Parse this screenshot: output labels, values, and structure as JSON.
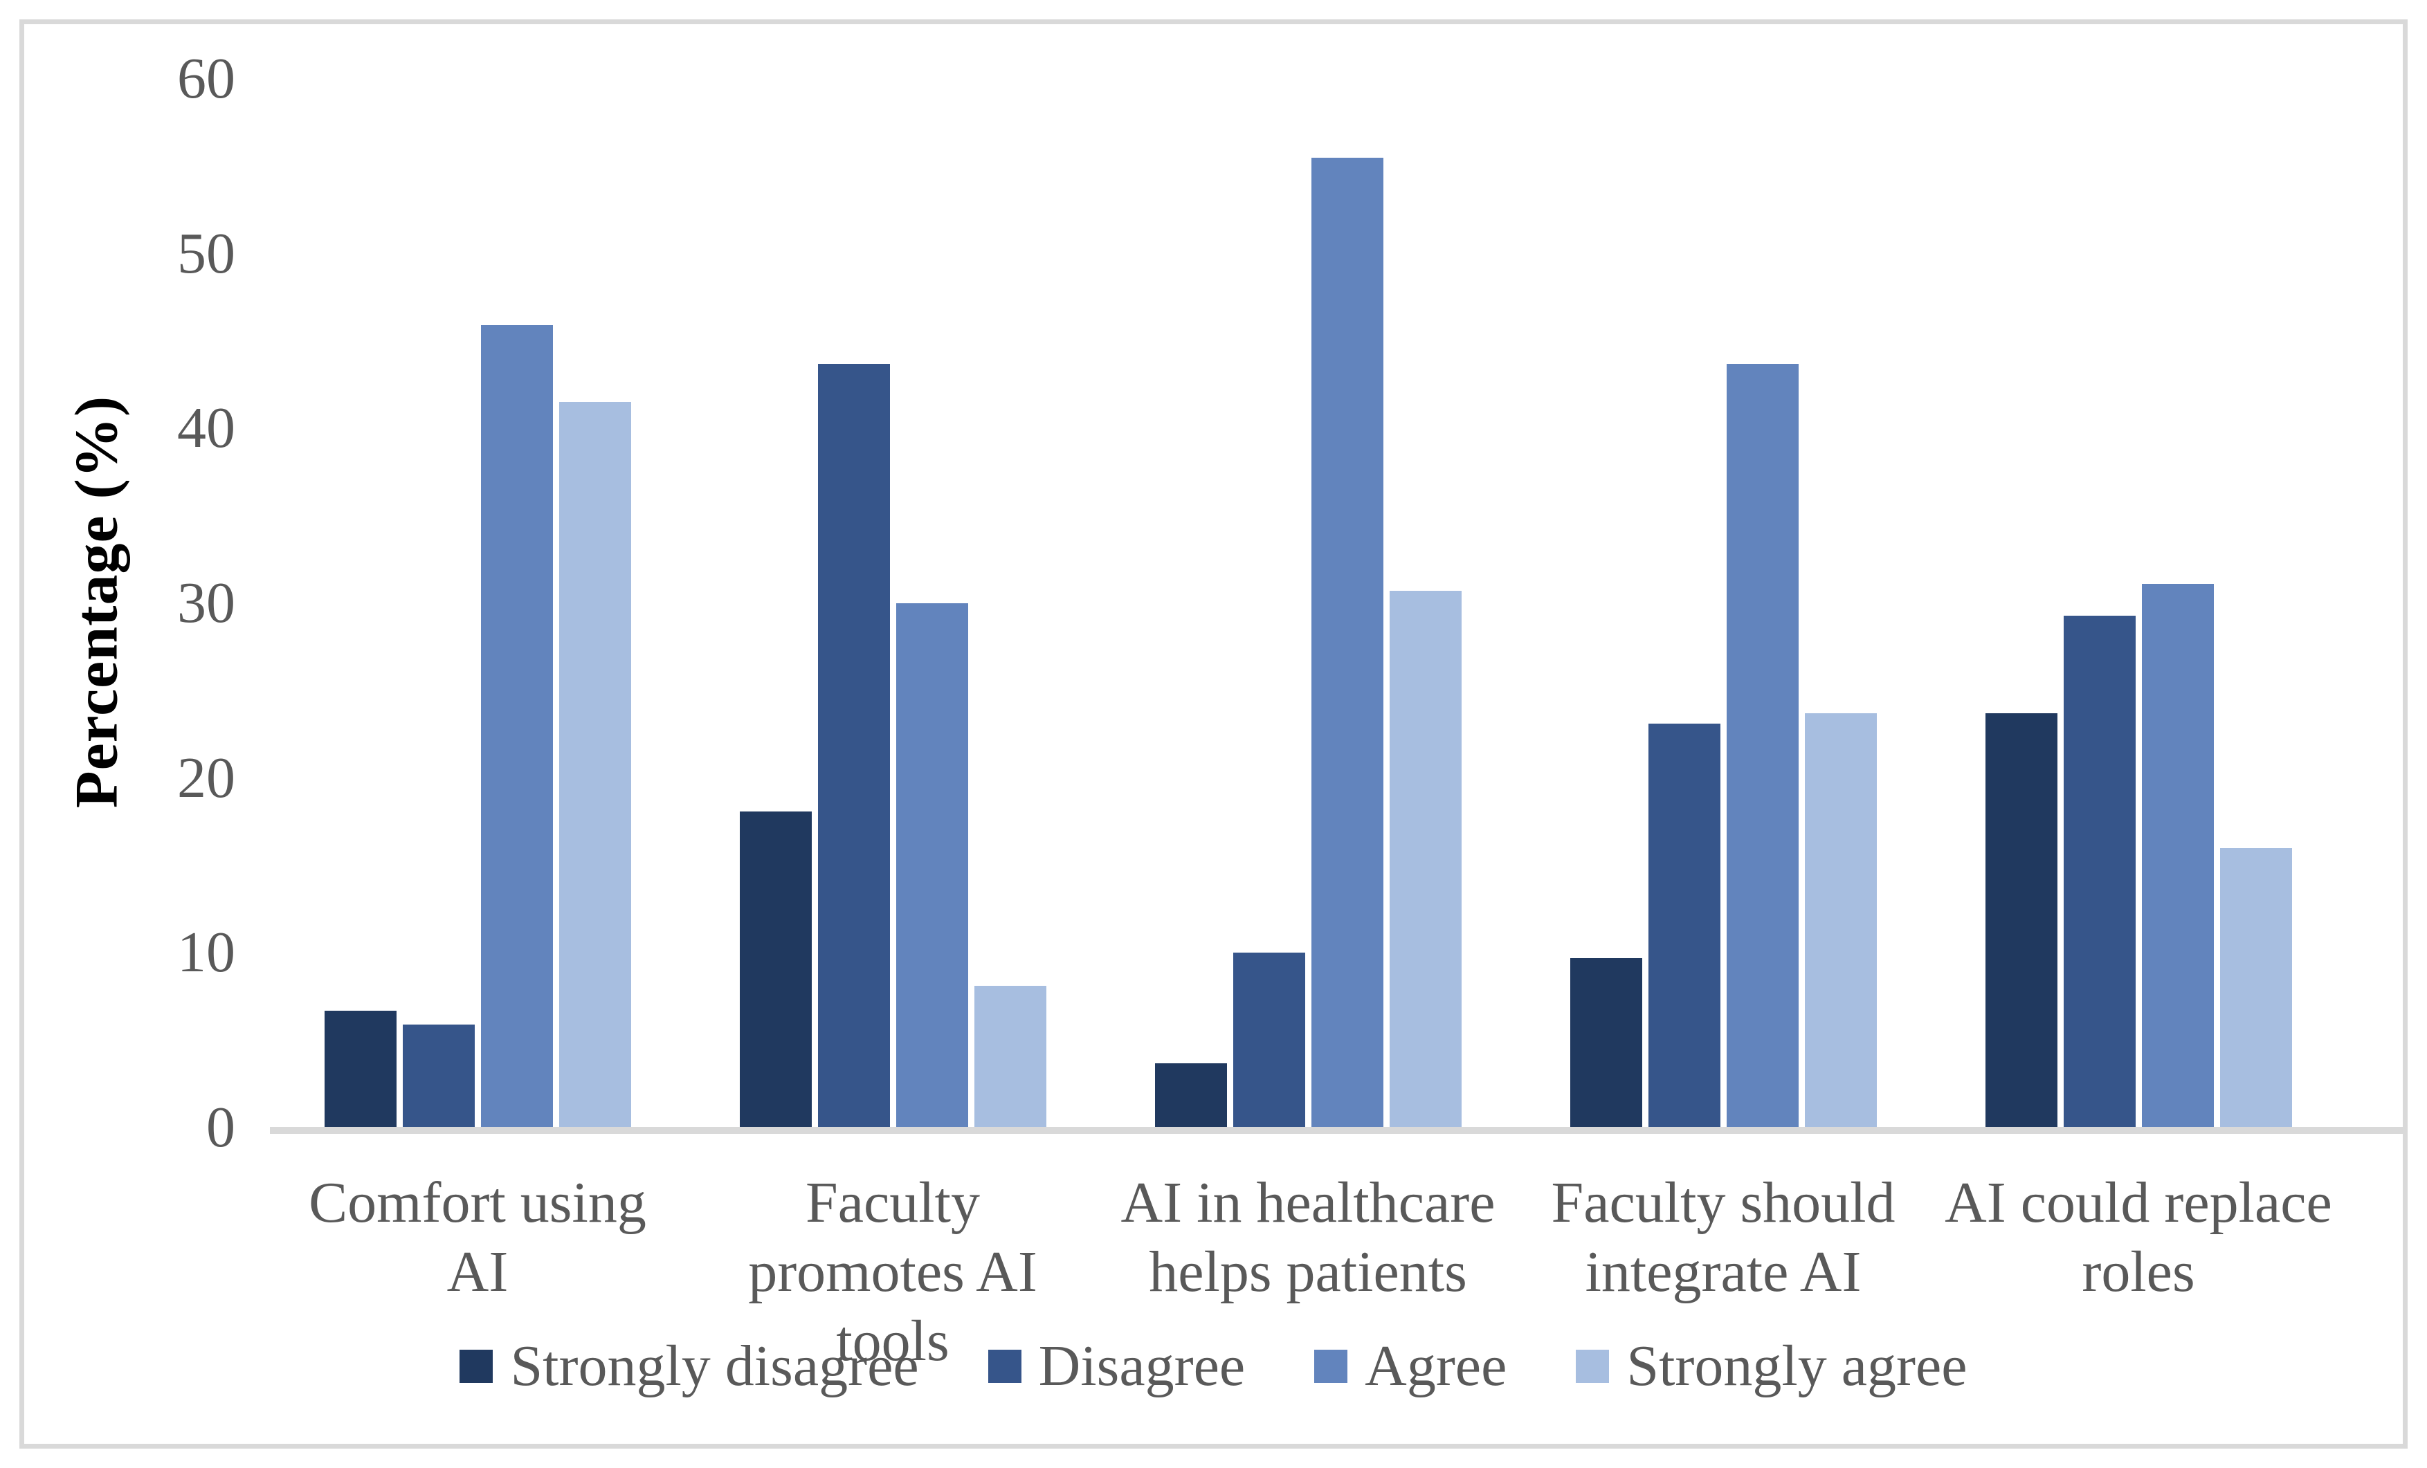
{
  "chart_data": {
    "type": "bar",
    "title": "",
    "ylabel": "Percentage (%)",
    "xlabel": "",
    "ylim": [
      0,
      60
    ],
    "yticks": [
      0,
      10,
      20,
      30,
      40,
      50,
      60
    ],
    "grid": false,
    "legend_position": "bottom",
    "categories": [
      "Comfort using AI",
      "Faculty promotes AI tools",
      "AI in healthcare helps patients",
      "Faculty should integrate AI",
      "AI could replace roles"
    ],
    "series": [
      {
        "name": "Strongly disagree",
        "color": "#20395F",
        "values": [
          6.7,
          18.1,
          3.7,
          9.7,
          23.7
        ]
      },
      {
        "name": "Disagree",
        "color": "#36558A",
        "values": [
          5.9,
          43.7,
          10.0,
          23.1,
          29.3
        ]
      },
      {
        "name": "Agree",
        "color": "#6284BD",
        "values": [
          45.9,
          30.0,
          55.5,
          43.7,
          31.1
        ]
      },
      {
        "name": "Strongly agree",
        "color": "#A7BEE0",
        "values": [
          41.5,
          8.1,
          30.7,
          23.7,
          16.0
        ]
      }
    ]
  },
  "colors": {
    "axis_line": "#d9d9d9",
    "frame_border": "#d9d9d9",
    "tick_text": "#595959",
    "category_text": "#595959",
    "legend_text": "#595959",
    "ylabel_text": "#000000",
    "background": "#ffffff"
  }
}
